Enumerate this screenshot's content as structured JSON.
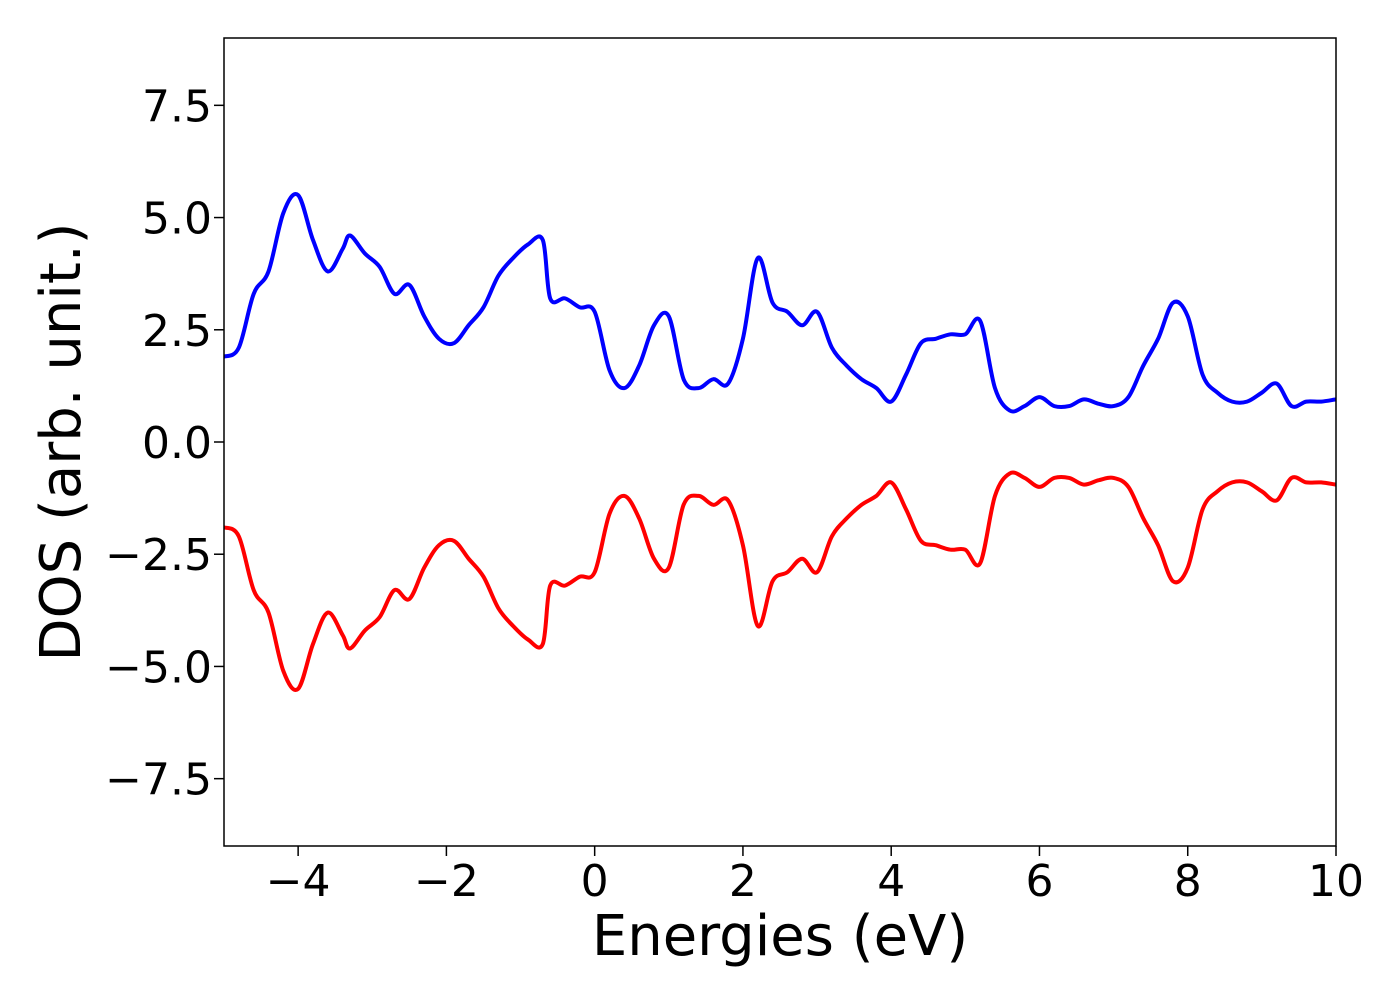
{
  "chart_data": {
    "type": "line",
    "title": "",
    "xlabel": "Energies (eV)",
    "ylabel": "DOS (arb. unit.)",
    "xlim": [
      -5,
      10
    ],
    "ylim": [
      -9,
      9
    ],
    "grid": false,
    "legend": "none",
    "x_ticks": [
      -4,
      -2,
      0,
      2,
      4,
      6,
      8,
      10
    ],
    "x_tick_labels": [
      "−4",
      "−2",
      "0",
      "2",
      "4",
      "6",
      "8",
      "10"
    ],
    "y_ticks": [
      -7.5,
      -5.0,
      -2.5,
      0.0,
      2.5,
      5.0,
      7.5
    ],
    "y_tick_labels": [
      "−7.5",
      "−5.0",
      "−2.5",
      "0.0",
      "2.5",
      "5.0",
      "7.5"
    ],
    "series": [
      {
        "color": "#0000ff",
        "x": [
          -5.0,
          -4.8,
          -4.6,
          -4.4,
          -4.2,
          -4.0,
          -3.8,
          -3.6,
          -3.4,
          -3.3,
          -3.1,
          -2.9,
          -2.7,
          -2.5,
          -2.3,
          -2.1,
          -1.9,
          -1.7,
          -1.5,
          -1.3,
          -1.1,
          -0.9,
          -0.7,
          -0.6,
          -0.4,
          -0.2,
          0.0,
          0.2,
          0.4,
          0.6,
          0.8,
          1.0,
          1.2,
          1.4,
          1.6,
          1.8,
          2.0,
          2.2,
          2.4,
          2.6,
          2.8,
          3.0,
          3.2,
          3.4,
          3.6,
          3.8,
          4.0,
          4.2,
          4.4,
          4.6,
          4.8,
          5.0,
          5.2,
          5.4,
          5.6,
          5.8,
          6.0,
          6.2,
          6.4,
          6.6,
          6.8,
          7.0,
          7.2,
          7.4,
          7.6,
          7.8,
          8.0,
          8.2,
          8.4,
          8.6,
          8.8,
          9.0,
          9.2,
          9.4,
          9.6,
          9.8,
          10.0
        ],
        "y": [
          1.9,
          2.1,
          3.3,
          3.8,
          5.1,
          5.5,
          4.5,
          3.8,
          4.3,
          4.6,
          4.2,
          3.9,
          3.3,
          3.5,
          2.8,
          2.3,
          2.2,
          2.6,
          3.0,
          3.7,
          4.1,
          4.4,
          4.5,
          3.2,
          3.2,
          3.0,
          2.9,
          1.6,
          1.2,
          1.7,
          2.6,
          2.8,
          1.4,
          1.2,
          1.4,
          1.3,
          2.3,
          4.1,
          3.1,
          2.9,
          2.6,
          2.9,
          2.1,
          1.7,
          1.4,
          1.2,
          0.9,
          1.5,
          2.2,
          2.3,
          2.4,
          2.4,
          2.7,
          1.2,
          0.7,
          0.8,
          1.0,
          0.8,
          0.8,
          0.95,
          0.85,
          0.8,
          1.0,
          1.7,
          2.3,
          3.1,
          2.8,
          1.5,
          1.1,
          0.9,
          0.9,
          1.1,
          1.3,
          0.8,
          0.9,
          0.9,
          0.95
        ]
      },
      {
        "color": "#ff0000",
        "x": [
          -5.0,
          -4.8,
          -4.6,
          -4.4,
          -4.2,
          -4.0,
          -3.8,
          -3.6,
          -3.4,
          -3.3,
          -3.1,
          -2.9,
          -2.7,
          -2.5,
          -2.3,
          -2.1,
          -1.9,
          -1.7,
          -1.5,
          -1.3,
          -1.1,
          -0.9,
          -0.7,
          -0.6,
          -0.4,
          -0.2,
          0.0,
          0.2,
          0.4,
          0.6,
          0.8,
          1.0,
          1.2,
          1.4,
          1.6,
          1.8,
          2.0,
          2.2,
          2.4,
          2.6,
          2.8,
          3.0,
          3.2,
          3.4,
          3.6,
          3.8,
          4.0,
          4.2,
          4.4,
          4.6,
          4.8,
          5.0,
          5.2,
          5.4,
          5.6,
          5.8,
          6.0,
          6.2,
          6.4,
          6.6,
          6.8,
          7.0,
          7.2,
          7.4,
          7.6,
          7.8,
          8.0,
          8.2,
          8.4,
          8.6,
          8.8,
          9.0,
          9.2,
          9.4,
          9.6,
          9.8,
          10.0
        ],
        "y": [
          -1.9,
          -2.1,
          -3.3,
          -3.8,
          -5.1,
          -5.5,
          -4.5,
          -3.8,
          -4.3,
          -4.6,
          -4.2,
          -3.9,
          -3.3,
          -3.5,
          -2.8,
          -2.3,
          -2.2,
          -2.6,
          -3.0,
          -3.7,
          -4.1,
          -4.4,
          -4.5,
          -3.2,
          -3.2,
          -3.0,
          -2.9,
          -1.6,
          -1.2,
          -1.7,
          -2.6,
          -2.8,
          -1.4,
          -1.2,
          -1.4,
          -1.3,
          -2.3,
          -4.1,
          -3.1,
          -2.9,
          -2.6,
          -2.9,
          -2.1,
          -1.7,
          -1.4,
          -1.2,
          -0.9,
          -1.5,
          -2.2,
          -2.3,
          -2.4,
          -2.4,
          -2.7,
          -1.2,
          -0.7,
          -0.8,
          -1.0,
          -0.8,
          -0.8,
          -0.95,
          -0.85,
          -0.8,
          -1.0,
          -1.7,
          -2.3,
          -3.1,
          -2.8,
          -1.5,
          -1.1,
          -0.9,
          -0.9,
          -1.1,
          -1.3,
          -0.8,
          -0.9,
          -0.9,
          -0.95
        ]
      }
    ]
  }
}
